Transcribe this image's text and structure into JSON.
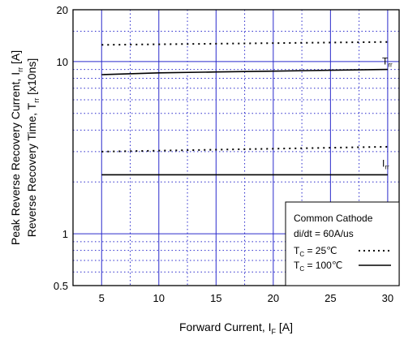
{
  "chart_data": {
    "type": "line",
    "title": "",
    "xlabel": "Forward Current, I",
    "xlabel_sub": "F",
    "xlabel_unit": "[A]",
    "ylabel_lines": [
      {
        "text": "Peak Reverse Recovery Current, I",
        "sub": "rr",
        "unit": "[A]"
      },
      {
        "text": "Reverse Recovery Time, T",
        "sub": "rr",
        "unit": "[x10ns]"
      }
    ],
    "xlim": [
      2.5,
      31
    ],
    "ylim": [
      0.5,
      20
    ],
    "yscale": "log",
    "xticks": [
      5,
      10,
      15,
      20,
      25,
      30
    ],
    "xtick_labels": [
      "5",
      "10",
      "15",
      "20",
      "25",
      "30"
    ],
    "yticks": [
      0.5,
      1,
      10,
      20
    ],
    "ytick_labels": [
      "0.5",
      "1",
      "10",
      "20"
    ],
    "grid": true,
    "series": [
      {
        "label": "T",
        "label_sub": "rr",
        "condition": "25C",
        "style": "dotted",
        "x": [
          5,
          30
        ],
        "y": [
          12.5,
          13
        ]
      },
      {
        "label": "T",
        "label_sub": "rr",
        "condition": "100C",
        "style": "solid",
        "x": [
          5,
          10,
          15,
          20,
          25,
          30
        ],
        "y": [
          8.4,
          8.6,
          8.7,
          8.8,
          8.9,
          9.0
        ]
      },
      {
        "label": "I",
        "label_sub": "rr",
        "condition": "25C",
        "style": "dotted",
        "x": [
          5,
          30
        ],
        "y": [
          3.0,
          3.2
        ]
      },
      {
        "label": "I",
        "label_sub": "rr",
        "condition": "100C",
        "style": "solid",
        "x": [
          5,
          30
        ],
        "y": [
          2.2,
          2.2
        ]
      }
    ],
    "legend": {
      "position": "bottom-right",
      "title": "Common Cathode",
      "line2": "di/dt = 60A/us",
      "entries": [
        {
          "prefix": "T",
          "sub": "C",
          "text": " =   25℃",
          "style": "dotted"
        },
        {
          "prefix": "T",
          "sub": "C",
          "text": " = 100℃",
          "style": "solid"
        }
      ]
    }
  }
}
